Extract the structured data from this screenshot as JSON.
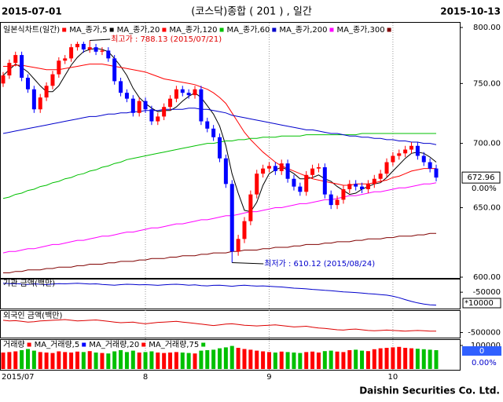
{
  "header": {
    "left": "2015-07-01",
    "title": "(코스닥)종합 ( 201 ) , 일간",
    "right": "2015-10-13"
  },
  "footer": "Daishin Securities Co. Ltd.",
  "chart_data": [
    {
      "type": "candlestick",
      "legend_title": "일본식차트(일간)",
      "log_scale": true,
      "up_color": "#ff0000",
      "down_color": "#0000ff",
      "ylim": [
        600,
        800
      ],
      "yticks": [
        {
          "value": 600,
          "label": "600.00"
        },
        {
          "value": 650,
          "label": "650.00"
        },
        {
          "value": 700,
          "label": "700.00"
        },
        {
          "value": 750,
          "label": "750.00"
        },
        {
          "value": 800,
          "label": "800.00"
        }
      ],
      "high_label": "최고가 : 788.13 (2015/07/21)",
      "low_label": "최저가 : 610.12 (2015/08/24)",
      "last_value": 672.96,
      "change_label": "0.00%",
      "opens": [
        750,
        757,
        768,
        775,
        755,
        745,
        728,
        738,
        748,
        758,
        770,
        772,
        782,
        785,
        780,
        782,
        778,
        779,
        772,
        752,
        742,
        737,
        725,
        735,
        728,
        718,
        722,
        730,
        737,
        745,
        742,
        740,
        745,
        718,
        712,
        705,
        688,
        668,
        618,
        627,
        640,
        660,
        676,
        680,
        682,
        678,
        684,
        672,
        666,
        662,
        675,
        680,
        681,
        660,
        652,
        656,
        664,
        668,
        666,
        664,
        668,
        672,
        676,
        685,
        690,
        692,
        695,
        698,
        690,
        685,
        680
      ],
      "highs": [
        760,
        771,
        778,
        778,
        758,
        748,
        741,
        751,
        761,
        773,
        775,
        785,
        787,
        787,
        788.13,
        785,
        782,
        782,
        775,
        755,
        745,
        740,
        738,
        738,
        731,
        725,
        733,
        740,
        748,
        748,
        745,
        748,
        748,
        721,
        715,
        708,
        691,
        671,
        630,
        643,
        663,
        679,
        683,
        685,
        685,
        687,
        687,
        675,
        669,
        678,
        683,
        684,
        684,
        663,
        659,
        667,
        671,
        671,
        669,
        671,
        675,
        679,
        688,
        693,
        695,
        698,
        701,
        701,
        693,
        688,
        683
      ],
      "lows": [
        747,
        754,
        765,
        752,
        742,
        725,
        725,
        735,
        745,
        755,
        767,
        769,
        779,
        777,
        777,
        775,
        775,
        769,
        749,
        739,
        734,
        722,
        722,
        725,
        715,
        715,
        719,
        727,
        734,
        739,
        737,
        737,
        715,
        709,
        702,
        685,
        665,
        610.12,
        615,
        624,
        637,
        657,
        673,
        677,
        675,
        675,
        669,
        663,
        659,
        659,
        672,
        677,
        657,
        649,
        649,
        653,
        661,
        663,
        661,
        661,
        665,
        669,
        673,
        682,
        687,
        689,
        692,
        687,
        682,
        677,
        670
      ],
      "closes": [
        757,
        768,
        775,
        755,
        745,
        728,
        738,
        748,
        758,
        770,
        772,
        782,
        785,
        780,
        782,
        778,
        779,
        772,
        752,
        742,
        737,
        725,
        735,
        728,
        718,
        722,
        730,
        737,
        745,
        742,
        740,
        745,
        718,
        712,
        705,
        688,
        668,
        618,
        627,
        640,
        660,
        676,
        680,
        682,
        678,
        684,
        672,
        666,
        662,
        675,
        680,
        681,
        660,
        652,
        656,
        664,
        668,
        666,
        664,
        668,
        672,
        676,
        685,
        690,
        692,
        695,
        698,
        690,
        685,
        680,
        672.96
      ],
      "series": [
        {
          "name": "MA_종가,5",
          "color": "#000000",
          "values": [
            757,
            762,
            767,
            764,
            760,
            754,
            748,
            743,
            743,
            748,
            757,
            766,
            773,
            778,
            780,
            781,
            780,
            778,
            772,
            765,
            757,
            746,
            738,
            733,
            729,
            726,
            727,
            727,
            730,
            735,
            739,
            742,
            738,
            731,
            724,
            714,
            698,
            676,
            661,
            648,
            647,
            654,
            667,
            676,
            679,
            681,
            679,
            676,
            672,
            672,
            673,
            675,
            672,
            670,
            666,
            663,
            660,
            661,
            664,
            666,
            668,
            669,
            673,
            678,
            683,
            688,
            692,
            693,
            692,
            689,
            685
          ]
        },
        {
          "name": "MA_종가,20",
          "color": "#ff0000",
          "values": [
            765,
            765,
            766,
            766,
            765,
            764,
            763,
            762,
            762,
            762,
            763,
            764,
            765,
            766,
            767,
            767,
            767,
            766,
            765,
            764,
            763,
            762,
            761,
            760,
            758,
            756,
            754,
            753,
            752,
            751,
            750,
            749,
            747,
            745,
            742,
            738,
            733,
            725,
            717,
            709,
            703,
            698,
            693,
            689,
            685,
            682,
            680,
            678,
            676,
            674,
            672,
            671,
            670,
            669,
            668,
            667,
            667,
            668,
            668,
            668,
            669,
            670,
            671,
            673,
            674,
            676,
            678,
            679,
            680,
            680,
            680
          ]
        },
        {
          "name": "MA_종가,120",
          "color": "#00c000",
          "values": [
            657,
            658,
            660,
            661,
            663,
            664,
            666,
            667,
            669,
            670,
            672,
            673,
            675,
            676,
            678,
            679,
            681,
            682,
            684,
            685,
            687,
            688,
            689,
            690,
            691,
            692,
            693,
            694,
            695,
            696,
            697,
            698,
            699,
            700,
            700,
            701,
            702,
            702,
            703,
            703,
            704,
            704,
            705,
            705,
            705,
            706,
            706,
            706,
            706,
            707,
            707,
            707,
            707,
            707,
            707,
            707,
            707,
            707,
            708,
            708,
            708,
            708,
            708,
            708,
            708,
            708,
            708,
            708,
            708,
            708,
            708
          ]
        },
        {
          "name": "MA_종가,60",
          "color": "#0000cc",
          "values": [
            708,
            709,
            710,
            711,
            712,
            713,
            714,
            715,
            716,
            717,
            718,
            719,
            720,
            721,
            722,
            722,
            723,
            724,
            724,
            725,
            725,
            726,
            726,
            727,
            727,
            727,
            728,
            728,
            728,
            728,
            729,
            729,
            728,
            728,
            727,
            726,
            725,
            723,
            722,
            721,
            720,
            719,
            718,
            717,
            716,
            715,
            714,
            713,
            712,
            711,
            711,
            710,
            709,
            708,
            708,
            707,
            706,
            706,
            705,
            705,
            704,
            704,
            703,
            703,
            702,
            702,
            701,
            701,
            700,
            700,
            699
          ]
        },
        {
          "name": "MA_종가,200",
          "color": "#ff00ff",
          "values": [
            617,
            618,
            618,
            619,
            620,
            620,
            621,
            622,
            623,
            623,
            624,
            625,
            626,
            626,
            627,
            628,
            629,
            629,
            630,
            631,
            632,
            632,
            633,
            634,
            635,
            635,
            636,
            637,
            638,
            638,
            639,
            640,
            641,
            641,
            642,
            643,
            644,
            644,
            645,
            646,
            647,
            647,
            648,
            649,
            650,
            650,
            651,
            652,
            653,
            653,
            654,
            655,
            656,
            656,
            657,
            658,
            659,
            659,
            660,
            661,
            662,
            662,
            663,
            664,
            665,
            665,
            666,
            667,
            668,
            668,
            669
          ]
        },
        {
          "name": "MA_종가,300",
          "color": "#800000",
          "values": [
            603,
            603,
            604,
            604,
            605,
            605,
            605,
            606,
            606,
            607,
            607,
            607,
            608,
            608,
            609,
            609,
            609,
            610,
            610,
            611,
            611,
            611,
            612,
            612,
            613,
            613,
            613,
            614,
            614,
            615,
            615,
            615,
            616,
            616,
            617,
            617,
            617,
            618,
            618,
            619,
            619,
            619,
            620,
            620,
            621,
            621,
            621,
            622,
            622,
            623,
            623,
            623,
            624,
            624,
            625,
            625,
            625,
            626,
            626,
            627,
            627,
            627,
            628,
            628,
            629,
            629,
            629,
            630,
            630,
            631,
            631
          ]
        }
      ]
    },
    {
      "type": "line",
      "title": "기관 금액(백만)",
      "color": "#0000cc",
      "ylim": [
        -130000,
        10000
      ],
      "yticks": [
        -50000
      ],
      "unit_label": "*10000",
      "values": [
        -2000,
        -4000,
        -3000,
        -6000,
        -8000,
        -5000,
        -7000,
        -9000,
        -6000,
        -4000,
        -5000,
        -3000,
        -2000,
        -4000,
        -6000,
        -5000,
        -8000,
        -10000,
        -12000,
        -9000,
        -7000,
        -8000,
        -10000,
        -9000,
        -11000,
        -13000,
        -10000,
        -8000,
        -7000,
        -9000,
        -12000,
        -10000,
        -14000,
        -16000,
        -13000,
        -12000,
        -15000,
        -18000,
        -14000,
        -12000,
        -15000,
        -17000,
        -16000,
        -18000,
        -20000,
        -22000,
        -25000,
        -28000,
        -30000,
        -32000,
        -35000,
        -37000,
        -40000,
        -42000,
        -45000,
        -48000,
        -50000,
        -52000,
        -55000,
        -58000,
        -60000,
        -63000,
        -66000,
        -72000,
        -80000,
        -90000,
        -100000,
        -108000,
        -114000,
        -118000,
        -120000
      ]
    },
    {
      "type": "line",
      "title": "외국인 금액(백만)",
      "color": "#dd0000",
      "ylim": [
        -600000,
        50000
      ],
      "yticks": [
        -500000
      ],
      "values": [
        -150000,
        -170000,
        -160000,
        -180000,
        -200000,
        -190000,
        -170000,
        -160000,
        -150000,
        -140000,
        -130000,
        -150000,
        -170000,
        -160000,
        -150000,
        -140000,
        -160000,
        -180000,
        -200000,
        -220000,
        -210000,
        -200000,
        -230000,
        -250000,
        -230000,
        -210000,
        -200000,
        -190000,
        -180000,
        -200000,
        -220000,
        -240000,
        -260000,
        -280000,
        -300000,
        -280000,
        -260000,
        -250000,
        -270000,
        -290000,
        -300000,
        -310000,
        -300000,
        -290000,
        -280000,
        -300000,
        -320000,
        -340000,
        -330000,
        -320000,
        -350000,
        -370000,
        -380000,
        -400000,
        -420000,
        -430000,
        -410000,
        -400000,
        -420000,
        -440000,
        -450000,
        -440000,
        -430000,
        -440000,
        -450000,
        -460000,
        -450000,
        -440000,
        -450000,
        -460000,
        -460000
      ]
    },
    {
      "type": "bar",
      "title": "거래량",
      "color": "#00c000",
      "up_color": "#ff0000",
      "ylim": [
        0,
        110000
      ],
      "yticks": [
        100000
      ],
      "current_value": 0,
      "change_label": "0.00%",
      "ma_legend": [
        {
          "name": "MA_거래량,5",
          "color": "#0000ff"
        },
        {
          "name": "MA_거래량,20",
          "color": "#ff0000"
        },
        {
          "name": "MA_거래량,75",
          "color": "#00c000"
        }
      ],
      "categories": [
        "2015/07",
        null,
        null,
        null,
        null,
        null,
        null,
        null,
        null,
        null,
        null,
        null,
        null,
        null,
        null,
        null,
        null,
        null,
        null,
        null,
        null,
        null,
        null,
        "8",
        null,
        null,
        null,
        null,
        null,
        null,
        null,
        null,
        null,
        null,
        null,
        null,
        null,
        null,
        null,
        null,
        null,
        null,
        null,
        "9",
        null,
        null,
        null,
        null,
        null,
        null,
        null,
        null,
        null,
        null,
        null,
        null,
        null,
        null,
        null,
        null,
        null,
        null,
        null,
        "10",
        null,
        null,
        null,
        null,
        null,
        null,
        null
      ],
      "values": [
        70000,
        72000,
        75000,
        80000,
        85000,
        78000,
        72000,
        70000,
        68000,
        75000,
        72000,
        70000,
        74000,
        72000,
        76000,
        70000,
        68000,
        66000,
        75000,
        80000,
        72000,
        78000,
        70000,
        72000,
        75000,
        70000,
        68000,
        70000,
        72000,
        70000,
        68000,
        66000,
        78000,
        80000,
        82000,
        88000,
        92000,
        98000,
        90000,
        85000,
        82000,
        78000,
        75000,
        72000,
        70000,
        74000,
        72000,
        70000,
        68000,
        72000,
        74000,
        70000,
        76000,
        78000,
        74000,
        72000,
        80000,
        82000,
        78000,
        76000,
        84000,
        88000,
        90000,
        92000,
        94000,
        90000,
        88000,
        86000,
        84000,
        82000,
        80000
      ]
    }
  ]
}
